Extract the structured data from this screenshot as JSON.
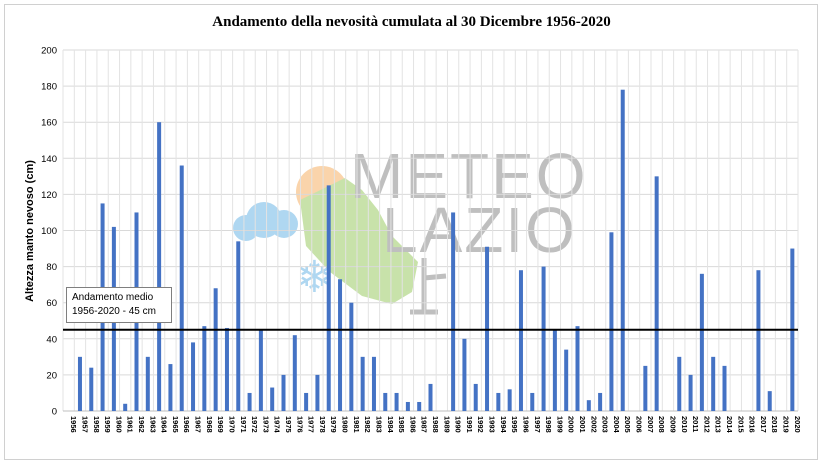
{
  "chart_data": {
    "type": "bar",
    "title": "Andamento della nevosità cumulata al 30 Dicembre 1956-2020",
    "ylabel": "Altezza  manto nevoso (cm)",
    "xlabel": "",
    "ylim": [
      0,
      200
    ],
    "yticks": [
      0,
      20,
      40,
      60,
      80,
      100,
      120,
      140,
      160,
      180,
      200
    ],
    "grid": true,
    "categories": [
      "1956",
      "1957",
      "1958",
      "1959",
      "1960",
      "1961",
      "1962",
      "1963",
      "1964",
      "1965",
      "1966",
      "1967",
      "1968",
      "1969",
      "1970",
      "1971",
      "1972",
      "1973",
      "1974",
      "1975",
      "1976",
      "1977",
      "1978",
      "1979",
      "1980",
      "1981",
      "1982",
      "1983",
      "1984",
      "1985",
      "1986",
      "1987",
      "1988",
      "1989",
      "1990",
      "1991",
      "1992",
      "1993",
      "1994",
      "1995",
      "1996",
      "1997",
      "1998",
      "1999",
      "2000",
      "2001",
      "2002",
      "2003",
      "2004",
      "2005",
      "2006",
      "2007",
      "2008",
      "2009",
      "2010",
      "2011",
      "2012",
      "2013",
      "2014",
      "2015",
      "2016",
      "2017",
      "2018",
      "2019",
      "2020"
    ],
    "values": [
      0,
      30,
      24,
      115,
      102,
      4,
      110,
      30,
      160,
      26,
      136,
      38,
      47,
      68,
      46,
      94,
      10,
      45,
      13,
      20,
      42,
      10,
      20,
      125,
      73,
      60,
      30,
      30,
      10,
      10,
      5,
      5,
      15,
      0,
      110,
      40,
      15,
      91,
      10,
      12,
      78,
      10,
      80,
      45,
      34,
      47,
      6,
      10,
      99,
      178,
      0,
      25,
      130,
      0,
      30,
      20,
      76,
      30,
      25,
      0,
      0,
      78,
      11,
      0,
      90
    ],
    "series_color": "#4472c4",
    "reference_line": {
      "value": 45,
      "color": "#000000"
    }
  },
  "annotation": {
    "line1": "Andamento medio",
    "line2": "1956-2020 - 45 cm"
  },
  "watermark": {
    "line1": "METEO",
    "line2": "LAZIO"
  }
}
